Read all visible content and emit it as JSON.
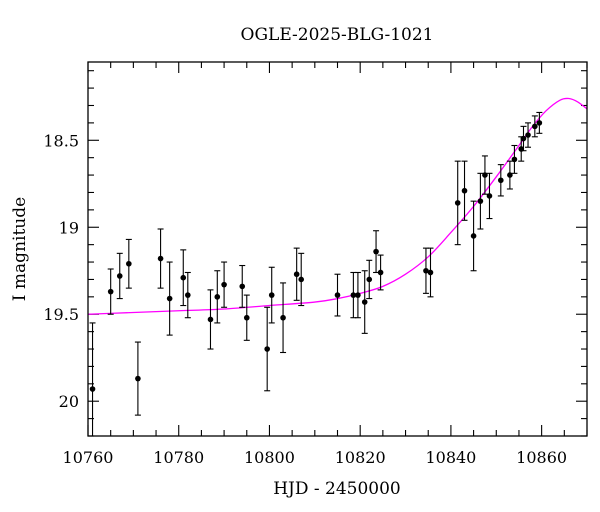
{
  "chart_data": {
    "type": "scatter",
    "title": "OGLE-2025-BLG-1021",
    "xlabel": "HJD - 2450000",
    "ylabel": "I magnitude",
    "xlim": [
      10760,
      10870
    ],
    "ylim": [
      20.2,
      18.05
    ],
    "y_inverted": true,
    "grid": false,
    "legend": "none",
    "x_major_ticks": [
      10760,
      10780,
      10800,
      10820,
      10840,
      10860
    ],
    "x_tick_labels": [
      "10760",
      "10780",
      "10800",
      "10820",
      "10840",
      "10860"
    ],
    "x_minor_step": 5,
    "y_major_ticks": [
      18.5,
      19,
      19.5,
      20
    ],
    "y_tick_labels": [
      "18.5",
      "19",
      "19.5",
      "20"
    ],
    "y_minor_step": 0.1,
    "colors": {
      "points": "#000000",
      "model": "#ff00ff"
    },
    "series": [
      {
        "type": "errorbar",
        "x": [
          10761,
          10765,
          10767,
          10769,
          10771,
          10776,
          10778,
          10781,
          10782,
          10787,
          10788.5,
          10790,
          10794,
          10795,
          10799.5,
          10800.5,
          10803,
          10806,
          10807,
          10815,
          10818.5,
          10819.5,
          10821,
          10822,
          10823.5,
          10824.5,
          10834.5,
          10835.5,
          10841.5,
          10843,
          10845,
          10846.5,
          10847.5,
          10848.5,
          10851,
          10853,
          10854,
          10855.5,
          10856,
          10857,
          10858.5,
          10859.5
        ],
        "y": [
          19.93,
          19.37,
          19.28,
          19.21,
          19.87,
          19.18,
          19.41,
          19.29,
          19.39,
          19.53,
          19.4,
          19.33,
          19.34,
          19.52,
          19.7,
          19.39,
          19.52,
          19.27,
          19.3,
          19.39,
          19.39,
          19.39,
          19.43,
          19.3,
          19.14,
          19.26,
          19.25,
          19.26,
          18.86,
          18.79,
          19.05,
          18.85,
          18.7,
          18.82,
          18.73,
          18.7,
          18.61,
          18.55,
          18.49,
          18.47,
          18.42,
          18.4
        ],
        "yerr": [
          0.38,
          0.13,
          0.13,
          0.14,
          0.21,
          0.17,
          0.21,
          0.16,
          0.13,
          0.17,
          0.15,
          0.13,
          0.12,
          0.13,
          0.24,
          0.16,
          0.2,
          0.15,
          0.15,
          0.12,
          0.13,
          0.13,
          0.18,
          0.11,
          0.12,
          0.1,
          0.13,
          0.14,
          0.24,
          0.17,
          0.2,
          0.16,
          0.11,
          0.13,
          0.09,
          0.08,
          0.08,
          0.07,
          0.07,
          0.07,
          0.06,
          0.06
        ]
      },
      {
        "type": "line",
        "x": [
          10760,
          10770,
          10780,
          10790,
          10800,
          10810,
          10815,
          10820,
          10825,
          10830,
          10835,
          10840,
          10845,
          10850,
          10855,
          10858,
          10861,
          10864,
          10866,
          10868,
          10870
        ],
        "y": [
          19.5,
          19.49,
          19.48,
          19.47,
          19.45,
          19.43,
          19.41,
          19.38,
          19.34,
          19.27,
          19.17,
          19.03,
          18.88,
          18.71,
          18.53,
          18.42,
          18.33,
          18.27,
          18.26,
          18.28,
          18.32
        ]
      }
    ]
  }
}
